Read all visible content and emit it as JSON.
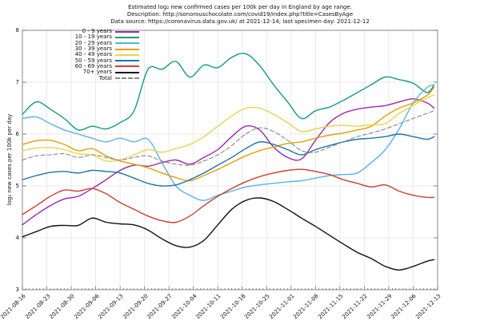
{
  "header": {
    "line1": "Estimated log₂ new confirmed cases per 100k per day in England by age range.",
    "line2": "Description: http://sonorouschocolate.com/covid19/index.php?title=CasesByAge",
    "line3": "Data source: https://coronavirus.data.gov.uk/ at 2021-12-14; last specimen day: 2021-12-12"
  },
  "chart_data": {
    "type": "line",
    "title": "Estimated log₂ new confirmed cases per 100k per day in England by age range.",
    "xlabel": "",
    "ylabel": "log₂ new cases per 100k per day",
    "ylim": [
      3,
      8
    ],
    "y_ticks": [
      3,
      4,
      5,
      6,
      7,
      8
    ],
    "grid": true,
    "legend_position": "top-left",
    "x_tick_labels": [
      "2021-08-16",
      "2021-08-23",
      "2021-08-30",
      "2021-09-06",
      "2021-09-13",
      "2021-09-20",
      "2021-09-27",
      "2021-10-04",
      "2021-10-11",
      "2021-10-18",
      "2021-10-25",
      "2021-11-01",
      "2021-11-08",
      "2021-11-15",
      "2021-11-22",
      "2021-11-29",
      "2021-12-06",
      "2021-12-13"
    ],
    "x_total_days": 119,
    "x_days": [
      0,
      4,
      8,
      12,
      16,
      20,
      24,
      28,
      32,
      36,
      40,
      44,
      48,
      52,
      56,
      60,
      64,
      68,
      72,
      76,
      80,
      84,
      88,
      92,
      96,
      100,
      104,
      108,
      112,
      116,
      118
    ],
    "series": [
      {
        "name": "0 - 9 years",
        "color": "#9c27b0",
        "style": "solid",
        "values": [
          4.25,
          4.45,
          4.62,
          4.75,
          4.8,
          4.95,
          5.12,
          5.3,
          5.4,
          5.38,
          5.45,
          5.5,
          5.42,
          5.55,
          5.7,
          5.95,
          6.15,
          6.08,
          5.75,
          5.55,
          5.52,
          5.88,
          6.22,
          6.4,
          6.48,
          6.52,
          6.55,
          6.62,
          6.68,
          6.6,
          6.5
        ]
      },
      {
        "name": "10 - 19 years",
        "color": "#109e78",
        "style": "solid",
        "values": [
          6.38,
          6.62,
          6.48,
          6.3,
          6.08,
          6.15,
          6.1,
          6.22,
          6.45,
          7.25,
          7.25,
          7.4,
          7.1,
          7.33,
          7.28,
          7.48,
          7.55,
          7.32,
          6.95,
          6.62,
          6.3,
          6.45,
          6.52,
          6.65,
          6.8,
          6.95,
          7.1,
          7.05,
          6.98,
          6.8,
          6.95
        ]
      },
      {
        "name": "20 - 29 years",
        "color": "#56b4e9",
        "style": "solid",
        "values": [
          6.3,
          6.33,
          6.2,
          6.08,
          6.0,
          5.92,
          5.85,
          5.92,
          5.85,
          5.9,
          5.45,
          5.0,
          4.82,
          4.72,
          4.82,
          4.9,
          4.98,
          5.02,
          5.05,
          5.08,
          5.1,
          5.15,
          5.2,
          5.22,
          5.25,
          5.45,
          5.7,
          6.1,
          6.6,
          6.9,
          6.95
        ]
      },
      {
        "name": "30 - 39 years",
        "color": "#e69f00",
        "style": "solid",
        "values": [
          5.8,
          5.87,
          5.88,
          5.8,
          5.68,
          5.72,
          5.58,
          5.48,
          5.42,
          5.35,
          5.25,
          5.16,
          5.1,
          5.2,
          5.32,
          5.45,
          5.58,
          5.68,
          5.75,
          5.82,
          5.85,
          5.92,
          5.98,
          6.02,
          6.08,
          6.15,
          6.35,
          6.5,
          6.6,
          6.75,
          6.9
        ]
      },
      {
        "name": "40 - 49 years",
        "color": "#e8d44d",
        "style": "solid",
        "values": [
          5.68,
          5.73,
          5.74,
          5.7,
          5.62,
          5.6,
          5.48,
          5.5,
          5.6,
          5.7,
          5.65,
          5.72,
          5.8,
          5.95,
          6.15,
          6.35,
          6.5,
          6.5,
          6.38,
          6.22,
          6.05,
          6.1,
          6.15,
          6.17,
          6.15,
          6.18,
          6.2,
          6.4,
          6.55,
          6.7,
          6.75
        ]
      },
      {
        "name": "50 - 59 years",
        "color": "#1d72ae",
        "style": "solid",
        "values": [
          5.12,
          5.2,
          5.26,
          5.28,
          5.25,
          5.3,
          5.28,
          5.25,
          5.15,
          5.05,
          5.0,
          5.02,
          5.12,
          5.25,
          5.4,
          5.55,
          5.72,
          5.85,
          5.8,
          5.7,
          5.6,
          5.7,
          5.78,
          5.85,
          5.9,
          5.92,
          5.95,
          6.0,
          5.95,
          5.9,
          5.95
        ]
      },
      {
        "name": "60 - 69 years",
        "color": "#cf3d30",
        "style": "solid",
        "values": [
          4.45,
          4.62,
          4.8,
          4.92,
          4.9,
          4.95,
          4.85,
          4.68,
          4.55,
          4.42,
          4.33,
          4.3,
          4.42,
          4.62,
          4.8,
          4.95,
          5.08,
          5.18,
          5.25,
          5.3,
          5.32,
          5.28,
          5.22,
          5.12,
          5.05,
          4.98,
          5.02,
          4.9,
          4.82,
          4.78,
          4.78
        ]
      },
      {
        "name": "70+ years",
        "color": "#111111",
        "style": "solid",
        "values": [
          4.02,
          4.12,
          4.22,
          4.24,
          4.24,
          4.38,
          4.3,
          4.27,
          4.25,
          4.15,
          3.98,
          3.85,
          3.82,
          3.95,
          4.25,
          4.55,
          4.72,
          4.77,
          4.7,
          4.55,
          4.38,
          4.22,
          4.05,
          3.88,
          3.72,
          3.6,
          3.45,
          3.38,
          3.45,
          3.55,
          3.58
        ]
      },
      {
        "name": "Total",
        "color": "#888888",
        "style": "dashed",
        "values": [
          5.5,
          5.58,
          5.6,
          5.62,
          5.55,
          5.6,
          5.55,
          5.5,
          5.55,
          5.58,
          5.48,
          5.42,
          5.4,
          5.48,
          5.6,
          5.78,
          6.0,
          6.12,
          6.05,
          5.88,
          5.68,
          5.65,
          5.75,
          5.85,
          5.95,
          6.02,
          6.1,
          6.2,
          6.3,
          6.4,
          6.45
        ]
      }
    ]
  },
  "colors": {
    "grid": "#e9e9e9",
    "border": "#8a8a8a",
    "tick": "#555555"
  }
}
